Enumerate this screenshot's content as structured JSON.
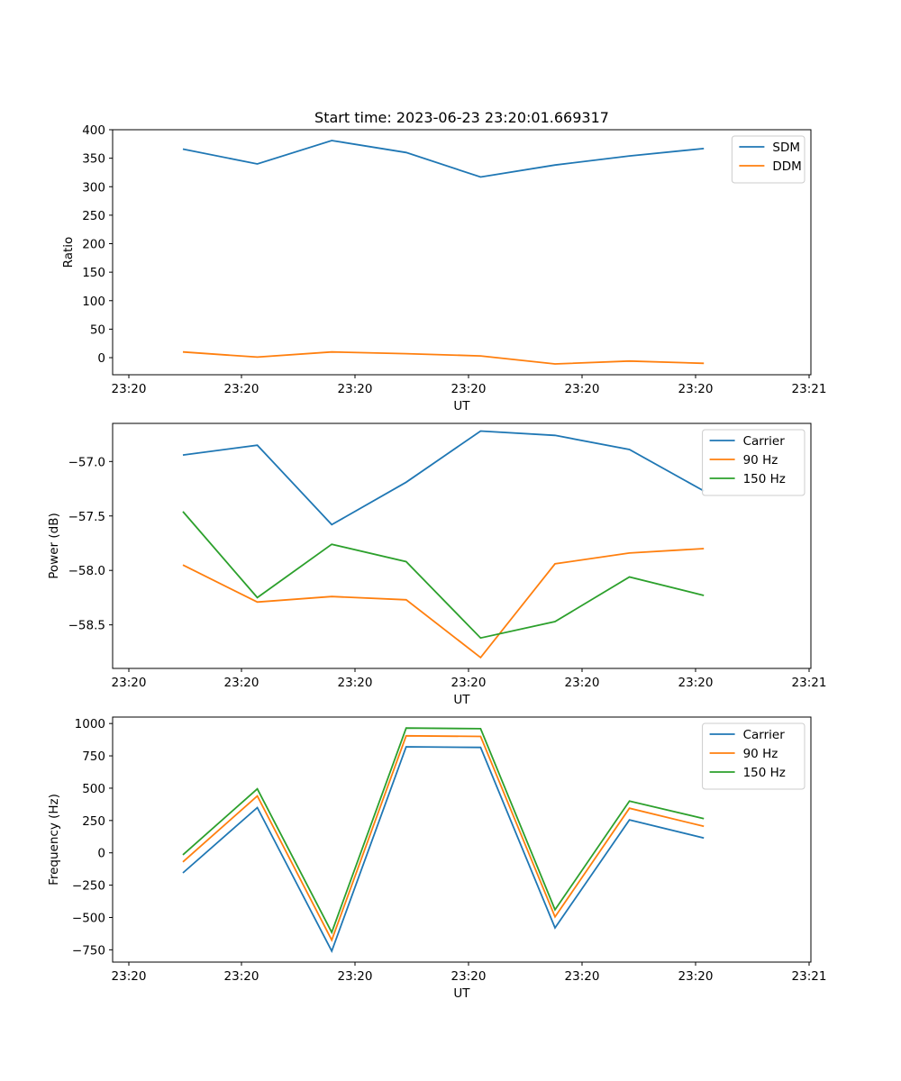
{
  "chart_data": [
    {
      "type": "line",
      "title": "Start time: 2023-06-23 23:20:01.669317",
      "xlabel": "UT",
      "ylabel": "Ratio",
      "x": [
        1,
        2,
        3,
        4,
        5,
        6,
        7,
        8
      ],
      "x_tick_labels": [
        "23:20",
        "23:20",
        "23:20",
        "23:20",
        "23:20",
        "23:20",
        "23:21"
      ],
      "ylim": [
        -30,
        400
      ],
      "y_ticks": [
        0,
        50,
        100,
        150,
        200,
        250,
        300,
        350,
        400
      ],
      "legend_position": "top-right",
      "grid": false,
      "series": [
        {
          "name": "SDM",
          "color": "#1f77b4",
          "values": [
            366,
            340,
            381,
            360,
            317,
            338,
            354,
            367
          ]
        },
        {
          "name": "DDM",
          "color": "#ff7f0e",
          "values": [
            10,
            1,
            10,
            7,
            3,
            -11,
            -6,
            -10
          ]
        }
      ]
    },
    {
      "type": "line",
      "title": "",
      "xlabel": "UT",
      "ylabel": "Power (dB)",
      "x": [
        1,
        2,
        3,
        4,
        5,
        6,
        7,
        8
      ],
      "x_tick_labels": [
        "23:20",
        "23:20",
        "23:20",
        "23:20",
        "23:20",
        "23:20",
        "23:21"
      ],
      "ylim": [
        -58.9,
        -56.65
      ],
      "y_ticks": [
        -58.5,
        -58.0,
        -57.5,
        -57.0
      ],
      "y_tick_labels": [
        "−58.5",
        "−58.0",
        "−57.5",
        "−57.0"
      ],
      "legend_position": "top-right",
      "grid": false,
      "series": [
        {
          "name": "Carrier",
          "color": "#1f77b4",
          "values": [
            -56.94,
            -56.85,
            -57.58,
            -57.19,
            -56.72,
            -56.76,
            -56.89,
            -57.27
          ]
        },
        {
          "name": "90 Hz",
          "color": "#ff7f0e",
          "values": [
            -57.95,
            -58.29,
            -58.24,
            -58.27,
            -58.8,
            -57.94,
            -57.84,
            -57.8
          ]
        },
        {
          "name": "150 Hz",
          "color": "#2ca02c",
          "values": [
            -57.46,
            -58.25,
            -57.76,
            -57.92,
            -58.62,
            -58.47,
            -58.06,
            -58.23
          ]
        }
      ]
    },
    {
      "type": "line",
      "title": "",
      "xlabel": "UT",
      "ylabel": "Frequency (Hz)",
      "x": [
        1,
        2,
        3,
        4,
        5,
        6,
        7,
        8
      ],
      "x_tick_labels": [
        "23:20",
        "23:20",
        "23:20",
        "23:20",
        "23:20",
        "23:20",
        "23:21"
      ],
      "ylim": [
        -845,
        1050
      ],
      "y_ticks": [
        -750,
        -500,
        -250,
        0,
        250,
        500,
        750,
        1000
      ],
      "y_tick_labels": [
        "−750",
        "−500",
        "−250",
        "0",
        "250",
        "500",
        "750",
        "1000"
      ],
      "legend_position": "top-right",
      "grid": false,
      "series": [
        {
          "name": "Carrier",
          "color": "#1f77b4",
          "values": [
            -155,
            350,
            -760,
            820,
            815,
            -580,
            255,
            115
          ]
        },
        {
          "name": "90 Hz",
          "color": "#ff7f0e",
          "values": [
            -70,
            440,
            -675,
            905,
            900,
            -495,
            345,
            205
          ]
        },
        {
          "name": "150 Hz",
          "color": "#2ca02c",
          "values": [
            -15,
            495,
            -615,
            965,
            960,
            -440,
            400,
            265
          ]
        }
      ]
    }
  ]
}
